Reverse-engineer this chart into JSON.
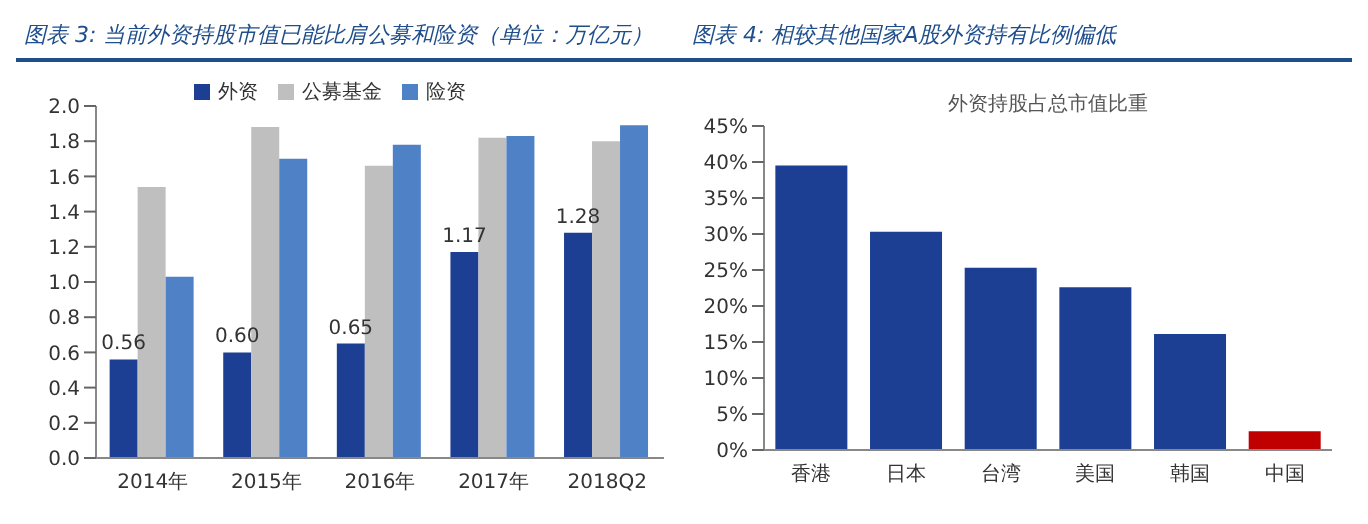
{
  "chart_data": [
    {
      "type": "bar",
      "title": "图表 3: 当前外资持股市值已能比肩公募和险资（单位：万亿元）",
      "categories": [
        "2014年",
        "2015年",
        "2016年",
        "2017年",
        "2018Q2"
      ],
      "series": [
        {
          "name": "外资",
          "color": "#1c3f94",
          "values": [
            0.56,
            0.6,
            0.65,
            1.17,
            1.28
          ],
          "value_labels": [
            "0.56",
            "0.60",
            "0.65",
            "1.17",
            "1.28"
          ]
        },
        {
          "name": "公募基金",
          "color": "#bfbfbf",
          "values": [
            1.54,
            1.88,
            1.66,
            1.82,
            1.8
          ]
        },
        {
          "name": "险资",
          "color": "#4f81c7",
          "values": [
            1.03,
            1.7,
            1.78,
            1.83,
            1.89
          ]
        }
      ],
      "ylim": [
        0,
        2
      ],
      "yticks": [
        {
          "value": 0,
          "label": "0.0"
        },
        0.2,
        0.4,
        0.6,
        0.8,
        {
          "value": 1,
          "label": "1.0"
        },
        1.2,
        1.4,
        1.6,
        1.8,
        {
          "value": 2,
          "label": "2.0"
        }
      ],
      "grid": false,
      "legend": "top"
    },
    {
      "type": "bar",
      "title": "图表 4: 相较其他国家A股外资持有比例偏低",
      "subtitle": "外资持股占总市值比重",
      "categories": [
        "香港",
        "日本",
        "台湾",
        "美国",
        "韩国",
        "中国"
      ],
      "values": [
        39.5,
        30.3,
        25.3,
        22.6,
        16.1,
        2.6
      ],
      "colors": [
        "#1c3f94",
        "#1c3f94",
        "#1c3f94",
        "#1c3f94",
        "#1c3f94",
        "#c00000"
      ],
      "ylim": [
        0,
        45
      ],
      "yticks": [
        {
          "value": 0,
          "label": "0%"
        },
        {
          "value": 5,
          "label": "5%"
        },
        {
          "value": 10,
          "label": "10%"
        },
        {
          "value": 15,
          "label": "15%"
        },
        {
          "value": 20,
          "label": "20%"
        },
        {
          "value": 25,
          "label": "25%"
        },
        {
          "value": 30,
          "label": "30%"
        },
        {
          "value": 35,
          "label": "35%"
        },
        {
          "value": 40,
          "label": "40%"
        },
        {
          "value": 45,
          "label": "45%"
        }
      ],
      "grid": false
    }
  ]
}
